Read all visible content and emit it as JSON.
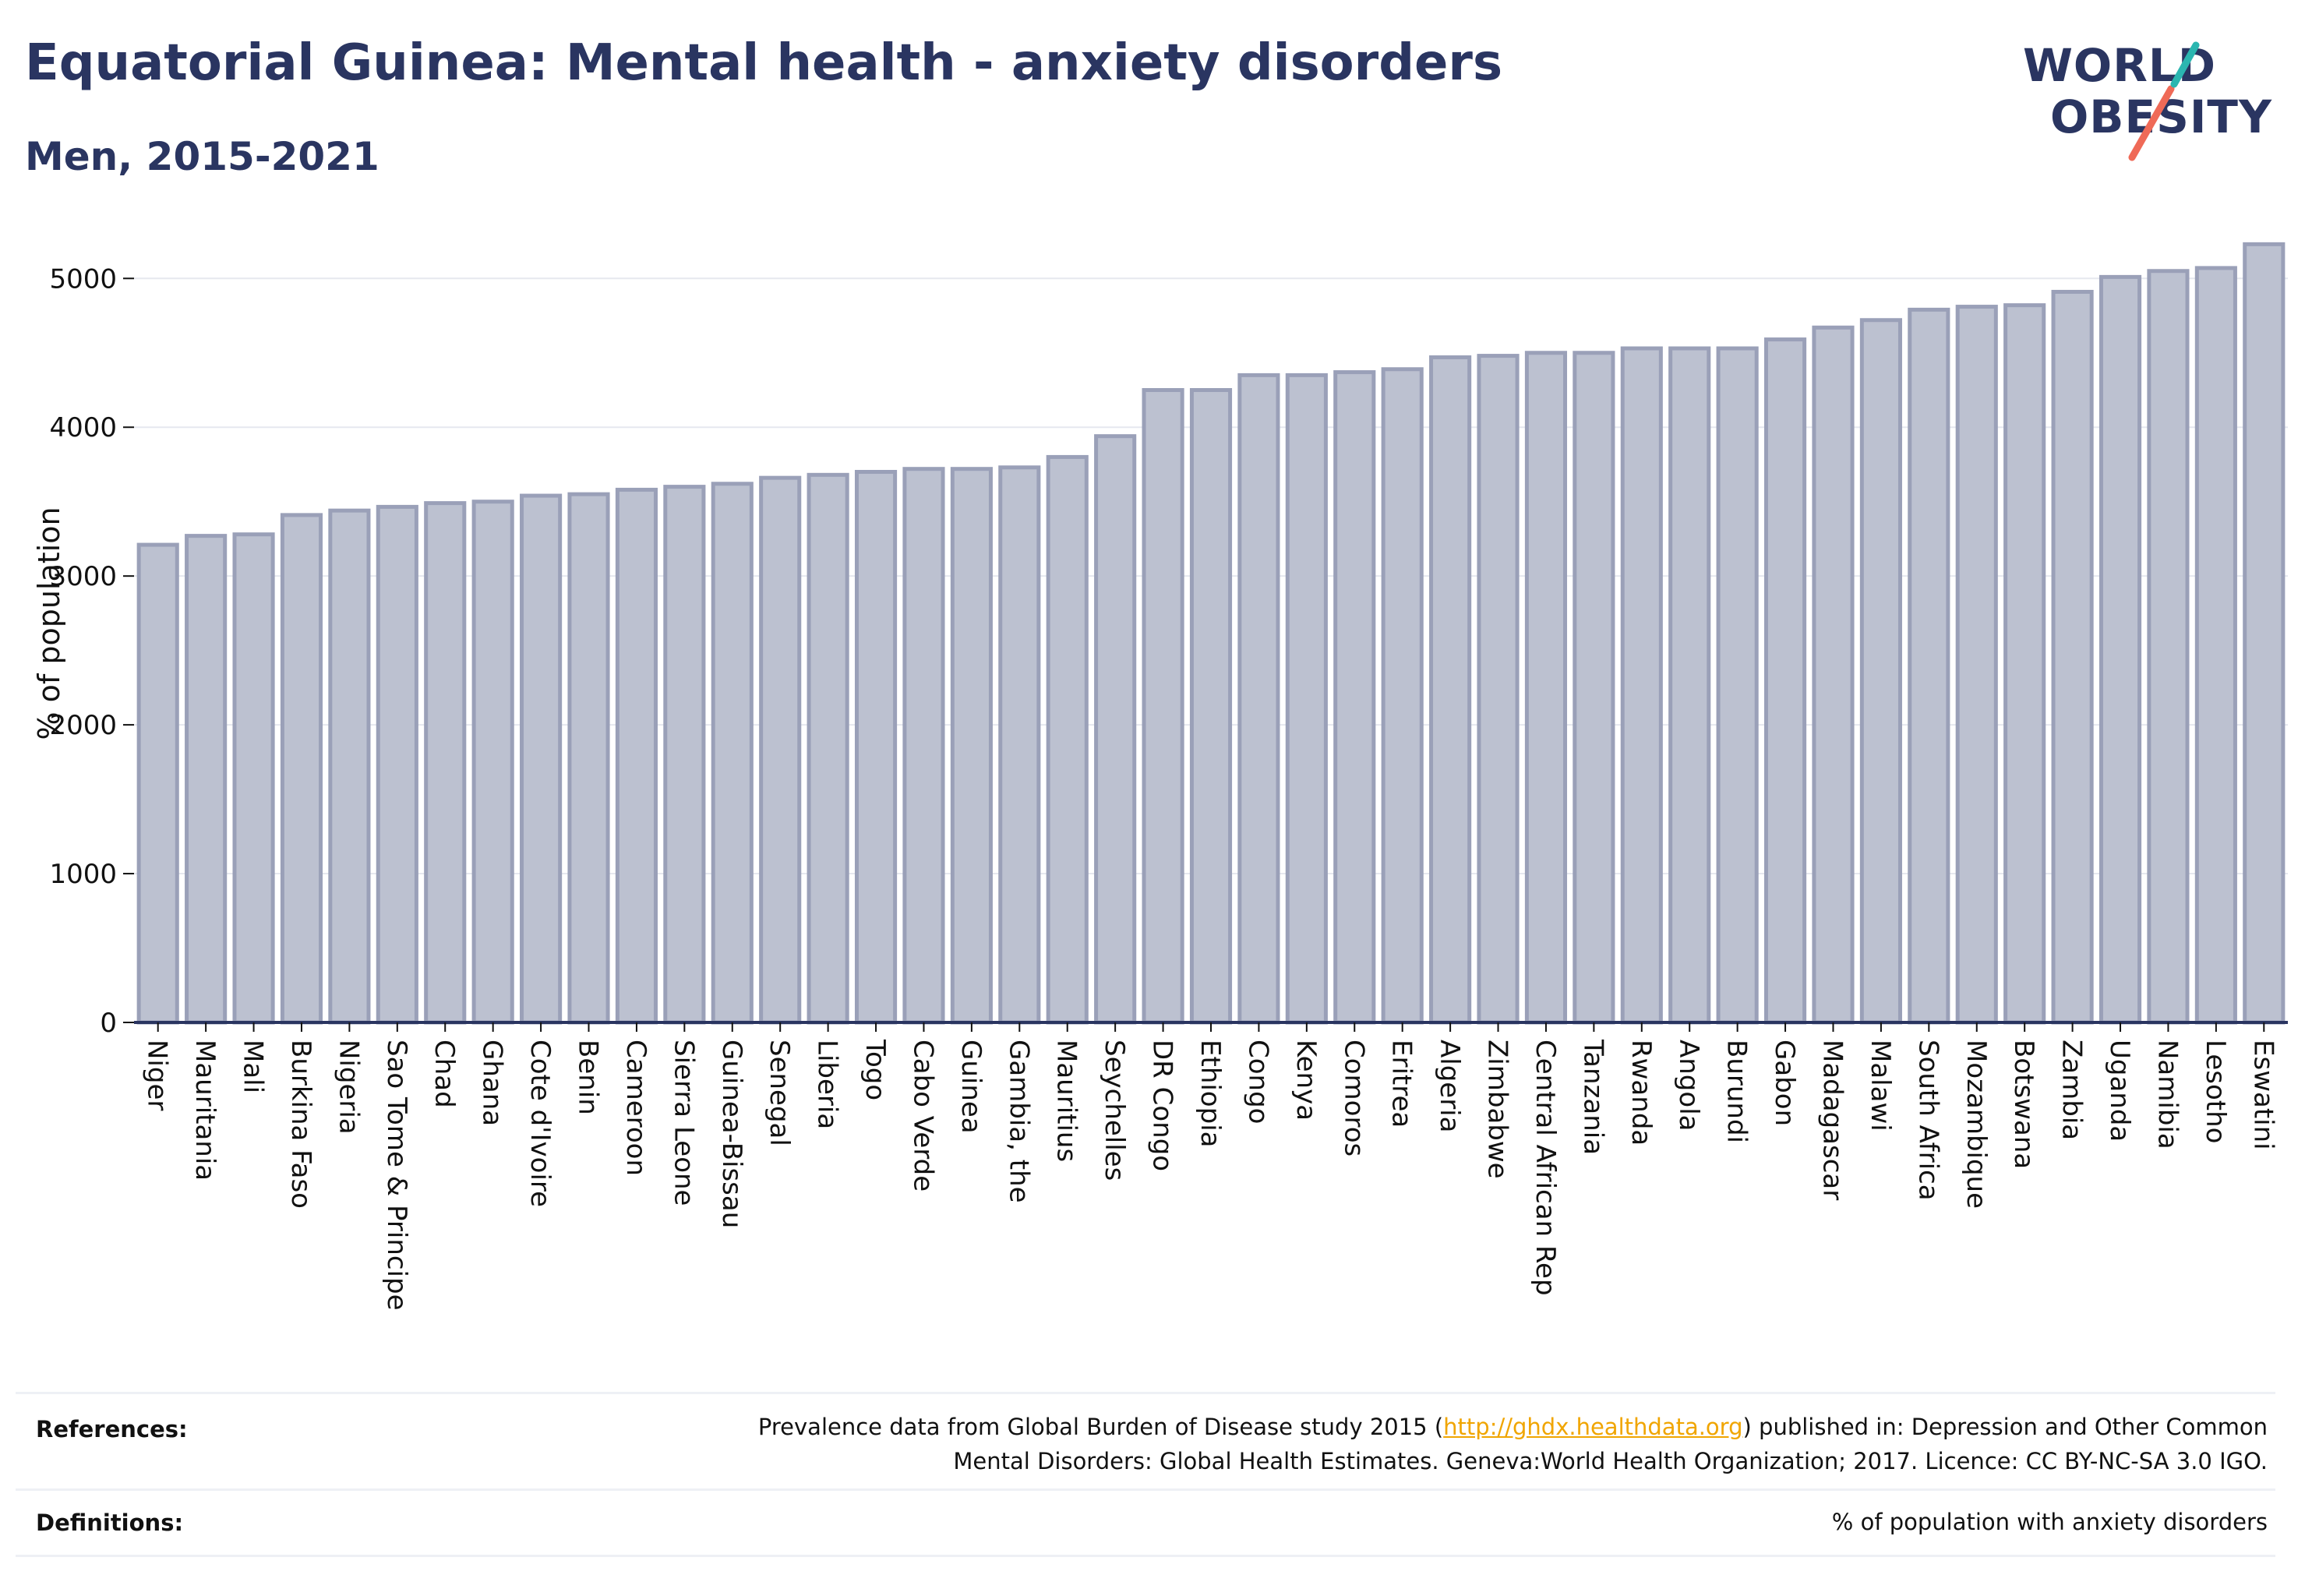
{
  "header": {
    "title": "Equatorial Guinea: Mental health - anxiety disorders",
    "subtitle": "Men, 2015-2021"
  },
  "logo": {
    "line1": "WORLD",
    "line2": "OBESITY",
    "colors": {
      "teal": "#2bb6b0",
      "coral": "#ef6a57",
      "navy": "#2a3561"
    }
  },
  "chart_data": {
    "type": "bar",
    "ylabel": "% of population",
    "ylim": [
      0,
      5300
    ],
    "yticks": [
      0,
      1000,
      2000,
      3000,
      4000,
      5000
    ],
    "grid": true,
    "bar_color": "#bcc1d0",
    "bar_edge_color": "#9aa0b8",
    "categories": [
      "Niger",
      "Mauritania",
      "Mali",
      "Burkina Faso",
      "Nigeria",
      "Sao Tome & Principe",
      "Chad",
      "Ghana",
      "Cote d'Ivoire",
      "Benin",
      "Cameroon",
      "Sierra Leone",
      "Guinea-Bissau",
      "Senegal",
      "Liberia",
      "Togo",
      "Cabo Verde",
      "Guinea",
      "Gambia, the",
      "Mauritius",
      "Seychelles",
      "DR Congo",
      "Ethiopia",
      "Congo",
      "Kenya",
      "Comoros",
      "Eritrea",
      "Algeria",
      "Zimbabwe",
      "Central African Rep",
      "Tanzania",
      "Rwanda",
      "Angola",
      "Burundi",
      "Gabon",
      "Madagascar",
      "Malawi",
      "South Africa",
      "Mozambique",
      "Botswana",
      "Zambia",
      "Uganda",
      "Namibia",
      "Lesotho",
      "Eswatini"
    ],
    "values": [
      3210,
      3270,
      3280,
      3410,
      3440,
      3465,
      3490,
      3500,
      3540,
      3550,
      3580,
      3600,
      3620,
      3660,
      3680,
      3700,
      3720,
      3720,
      3730,
      3800,
      3940,
      4250,
      4250,
      4350,
      4350,
      4370,
      4390,
      4470,
      4480,
      4500,
      4500,
      4530,
      4530,
      4530,
      4590,
      4670,
      4720,
      4790,
      4810,
      4820,
      4910,
      5010,
      5050,
      5070,
      5230
    ]
  },
  "footer": {
    "references_label": "References:",
    "references_text_before": "Prevalence data from Global Burden of Disease study 2015 (",
    "references_link": "http://ghdx.healthdata.org",
    "references_text_after": ") published in: Depression and Other Common",
    "references_line2": "Mental Disorders: Global Health Estimates. Geneva:World Health Organization; 2017. Licence: CC BY-NC-SA 3.0 IGO.",
    "definitions_label": "Definitions:",
    "definitions_text": "% of population with anxiety disorders"
  }
}
